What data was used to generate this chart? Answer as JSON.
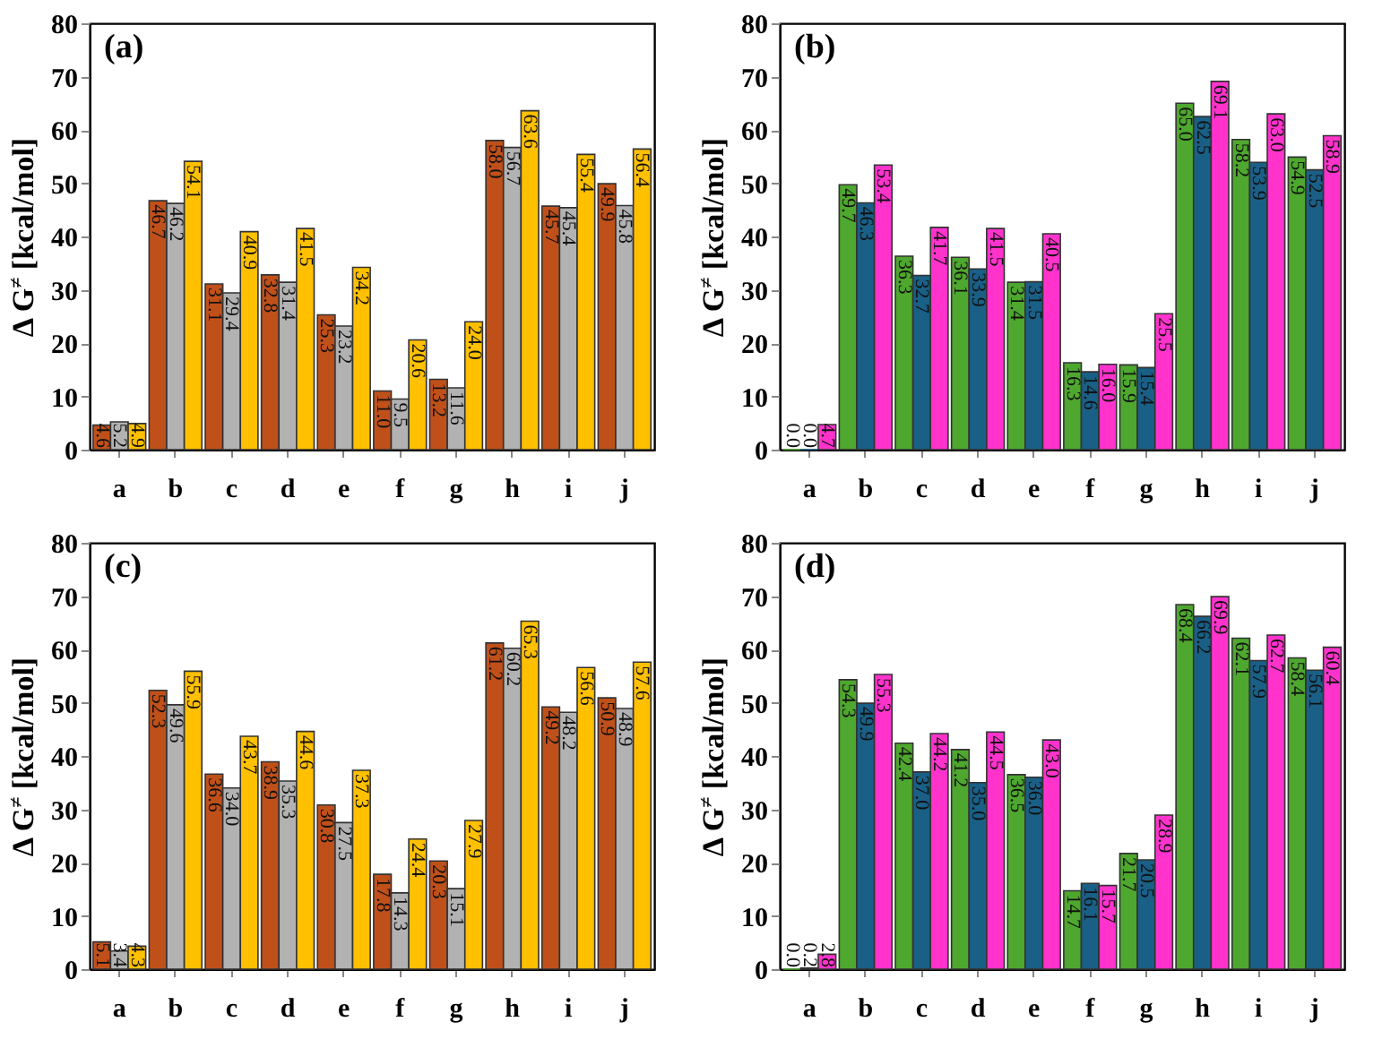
{
  "chart_data": [
    {
      "type": "bar",
      "title": "(a)",
      "ylabel": "Δ G$^{≠}$ [kcal/mol]",
      "categories": [
        "a",
        "b",
        "c",
        "d",
        "e",
        "f",
        "g",
        "h",
        "i",
        "j"
      ],
      "ylim": [
        0,
        80
      ],
      "yticks": [
        0,
        10,
        20,
        30,
        40,
        50,
        60,
        70,
        80
      ],
      "series": [
        {
          "color": "#c0501a",
          "values": [
            4.6,
            46.7,
            31.1,
            32.8,
            25.3,
            11.0,
            13.2,
            58.0,
            45.7,
            49.9
          ],
          "value_labels": [
            "4.6",
            "46.7",
            "31.1",
            "32.8",
            "25.3",
            "11.0",
            "13.2",
            "58.0",
            "45.7",
            "49.9"
          ]
        },
        {
          "color": "#b2b2b2",
          "values": [
            5.2,
            46.2,
            29.4,
            31.4,
            23.2,
            9.5,
            11.6,
            56.7,
            45.4,
            45.8
          ],
          "value_labels": [
            "5.2",
            "46.2",
            "29.4",
            "31.4",
            "23.2",
            "9.5",
            "11.6",
            "56.7",
            "45.4",
            "45.8"
          ]
        },
        {
          "color": "#ffc000",
          "values": [
            4.9,
            54.1,
            40.9,
            41.5,
            34.2,
            20.6,
            24.0,
            63.6,
            55.4,
            56.4
          ],
          "value_labels": [
            "4.9",
            "54.1",
            "40.9",
            "41.5",
            "34.2",
            "20.6",
            "24.0",
            "63.6",
            "55.4",
            "56.4"
          ]
        }
      ]
    },
    {
      "type": "bar",
      "title": "(b)",
      "ylabel": "Δ G$^{≠}$ [kcal/mol]",
      "categories": [
        "a",
        "b",
        "c",
        "d",
        "e",
        "f",
        "g",
        "h",
        "i",
        "j"
      ],
      "ylim": [
        0,
        80
      ],
      "yticks": [
        0,
        10,
        20,
        30,
        40,
        50,
        60,
        70,
        80
      ],
      "series": [
        {
          "color": "#4ea72e",
          "values": [
            0.0,
            49.7,
            36.3,
            36.1,
            31.4,
            16.3,
            15.9,
            65.0,
            58.2,
            54.9
          ],
          "value_labels": [
            "0.0",
            "49.7",
            "36.3",
            "36.1",
            "31.4",
            "16.3",
            "15.9",
            "65.0",
            "58.2",
            "54.9"
          ]
        },
        {
          "color": "#1a5f86",
          "values": [
            0.0,
            46.3,
            32.7,
            33.9,
            31.5,
            14.6,
            15.4,
            62.5,
            53.9,
            52.5
          ],
          "value_labels": [
            "0.0",
            "46.3",
            "32.7",
            "33.9",
            "31.5",
            "14.6",
            "15.4",
            "62.5",
            "53.9",
            "52.5"
          ]
        },
        {
          "color": "#ff33cc",
          "values": [
            4.7,
            53.4,
            41.7,
            41.5,
            40.5,
            16.0,
            25.5,
            69.1,
            63.0,
            58.9
          ],
          "value_labels": [
            "4.7",
            "53.4",
            "41.7",
            "41.5",
            "40.5",
            "16.0",
            "25.5",
            "69.1",
            "63.0",
            "58.9"
          ]
        }
      ]
    },
    {
      "type": "bar",
      "title": "(c)",
      "ylabel": "Δ G$^{≠}$ [kcal/mol]",
      "categories": [
        "a",
        "b",
        "c",
        "d",
        "e",
        "f",
        "g",
        "h",
        "i",
        "j"
      ],
      "ylim": [
        0,
        80
      ],
      "yticks": [
        0,
        10,
        20,
        30,
        40,
        50,
        60,
        70,
        80
      ],
      "series": [
        {
          "color": "#c0501a",
          "values": [
            5.1,
            52.3,
            36.6,
            38.9,
            30.8,
            17.8,
            20.3,
            61.2,
            49.2,
            50.9
          ],
          "value_labels": [
            "5.1",
            "52.3",
            "36.6",
            "38.9",
            "30.8",
            "17.8",
            "20.3",
            "61.2",
            "49.2",
            "50.9"
          ]
        },
        {
          "color": "#b2b2b2",
          "values": [
            3.4,
            49.6,
            34.0,
            35.3,
            27.5,
            14.3,
            15.1,
            60.2,
            48.2,
            48.9
          ],
          "value_labels": [
            "3.4",
            "49.6",
            "34.0",
            "35.3",
            "27.5",
            "14.3",
            "15.1",
            "60.2",
            "48.2",
            "48.9"
          ]
        },
        {
          "color": "#ffc000",
          "values": [
            4.3,
            55.9,
            43.7,
            44.6,
            37.3,
            24.4,
            27.9,
            65.3,
            56.6,
            57.6
          ],
          "value_labels": [
            "4.3",
            "55.9",
            "43.7",
            "44.6",
            "37.3",
            "24.4",
            "27.9",
            "65.3",
            "56.6",
            "57.6"
          ]
        }
      ]
    },
    {
      "type": "bar",
      "title": "(d)",
      "ylabel": "Δ G$^{≠}$ [kcal/mol]",
      "categories": [
        "a",
        "b",
        "c",
        "d",
        "e",
        "f",
        "g",
        "h",
        "i",
        "j"
      ],
      "ylim": [
        0,
        80
      ],
      "yticks": [
        0,
        10,
        20,
        30,
        40,
        50,
        60,
        70,
        80
      ],
      "series": [
        {
          "color": "#4ea72e",
          "values": [
            0.0,
            54.3,
            42.4,
            41.2,
            36.5,
            14.7,
            21.7,
            68.4,
            62.1,
            58.4
          ],
          "value_labels": [
            "0.0",
            "54.3",
            "42.4",
            "41.2",
            "36.5",
            "14.7",
            "21.7",
            "68.4",
            "62.1",
            "58.4"
          ]
        },
        {
          "color": "#1a5f86",
          "values": [
            0.2,
            49.9,
            37.0,
            35.0,
            36.0,
            16.1,
            20.5,
            66.2,
            57.9,
            56.1
          ],
          "value_labels": [
            "0.2",
            "49.9",
            "37.0",
            "35.0",
            "36.0",
            "16.1",
            "20.5",
            "66.2",
            "57.9",
            "56.1"
          ]
        },
        {
          "color": "#ff33cc",
          "values": [
            2.8,
            55.3,
            44.2,
            44.5,
            43.0,
            15.7,
            28.9,
            69.9,
            62.7,
            60.4
          ],
          "value_labels": [
            "2.8",
            "55.3",
            "44.2",
            "44.5",
            "43.0",
            "15.7",
            "28.9",
            "69.9",
            "62.7",
            "60.4"
          ]
        }
      ]
    }
  ]
}
